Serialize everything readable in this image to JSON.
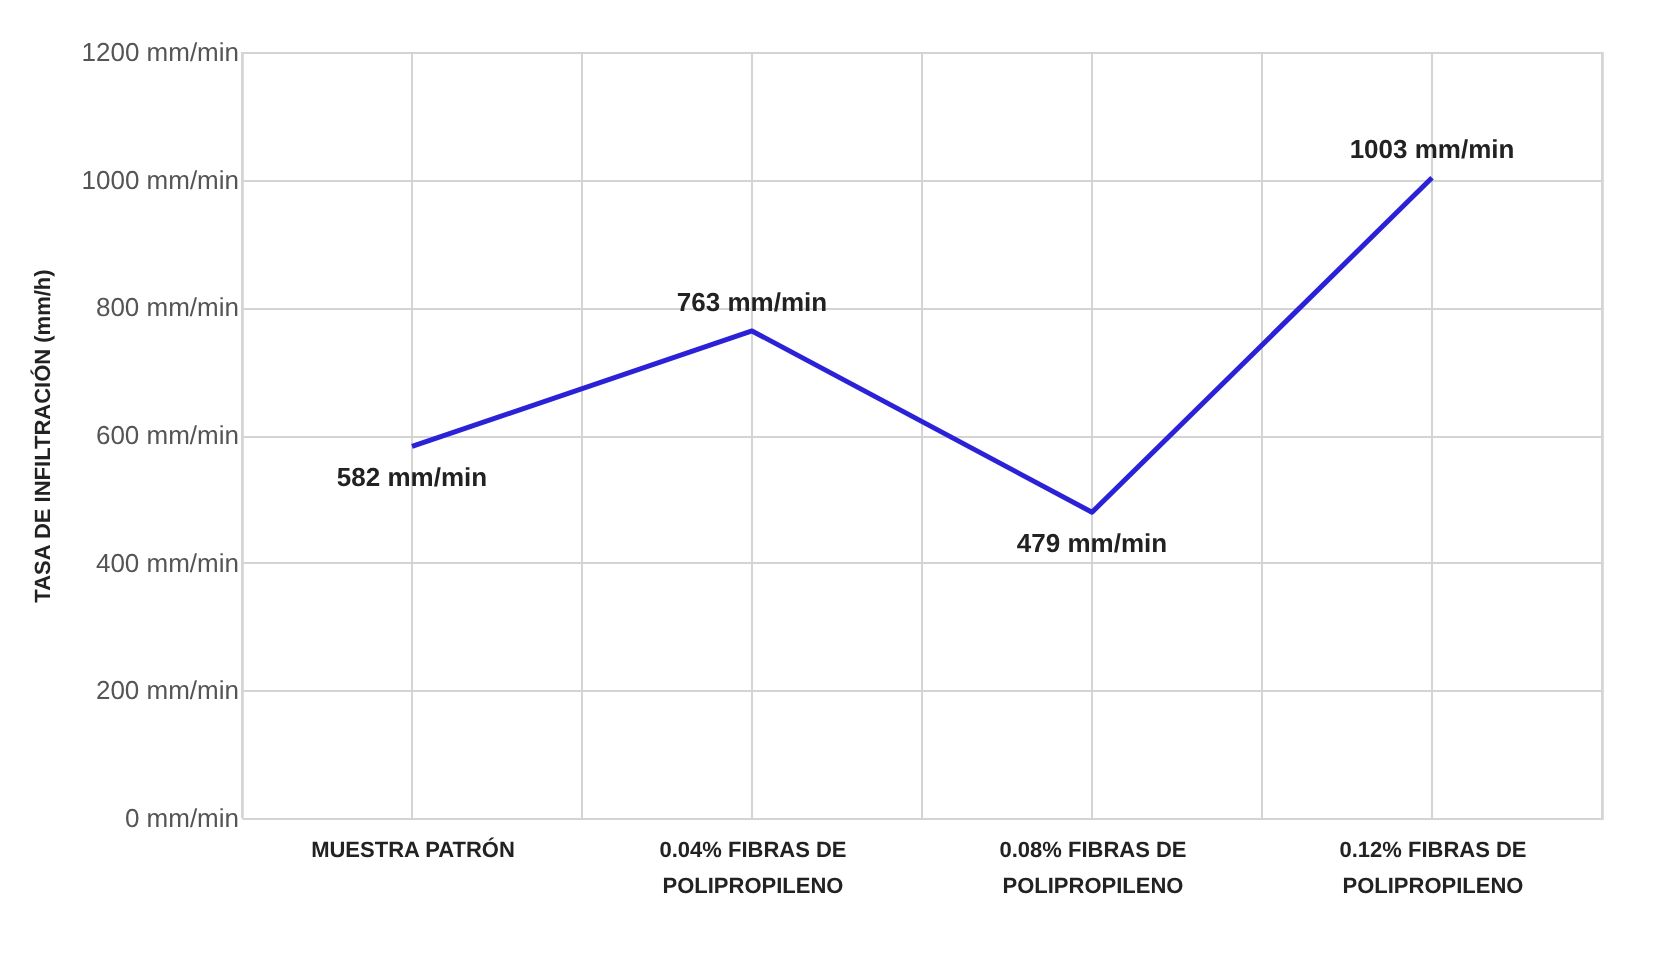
{
  "chart_data": {
    "type": "line",
    "ylabel": "TASA DE INFILTRACIÓN (mm/h)",
    "categories": [
      "MUESTRA PATRÓN",
      "0.04% FIBRAS DE POLIPROPILENO",
      "0.08% FIBRAS DE POLIPROPILENO",
      "0.12% FIBRAS DE POLIPROPILENO"
    ],
    "series": [
      {
        "color": "#2b22d8",
        "values": [
          582,
          763,
          479,
          1003
        ],
        "value_labels": [
          "582 mm/min",
          "763 mm/min",
          "479 mm/min",
          "1003 mm/min"
        ]
      }
    ],
    "ylim": [
      0,
      1200
    ],
    "yticks": [
      {
        "value": 0,
        "label": "0 mm/min"
      },
      {
        "value": 200,
        "label": "200 mm/min"
      },
      {
        "value": 400,
        "label": "400 mm/min"
      },
      {
        "value": 600,
        "label": "600 mm/min"
      },
      {
        "value": 800,
        "label": "800 mm/min"
      },
      {
        "value": 1000,
        "label": "1000 mm/min"
      },
      {
        "value": 1200,
        "label": "1200 mm/min"
      }
    ],
    "grid": true,
    "marker": "none",
    "line_style": "solid"
  }
}
